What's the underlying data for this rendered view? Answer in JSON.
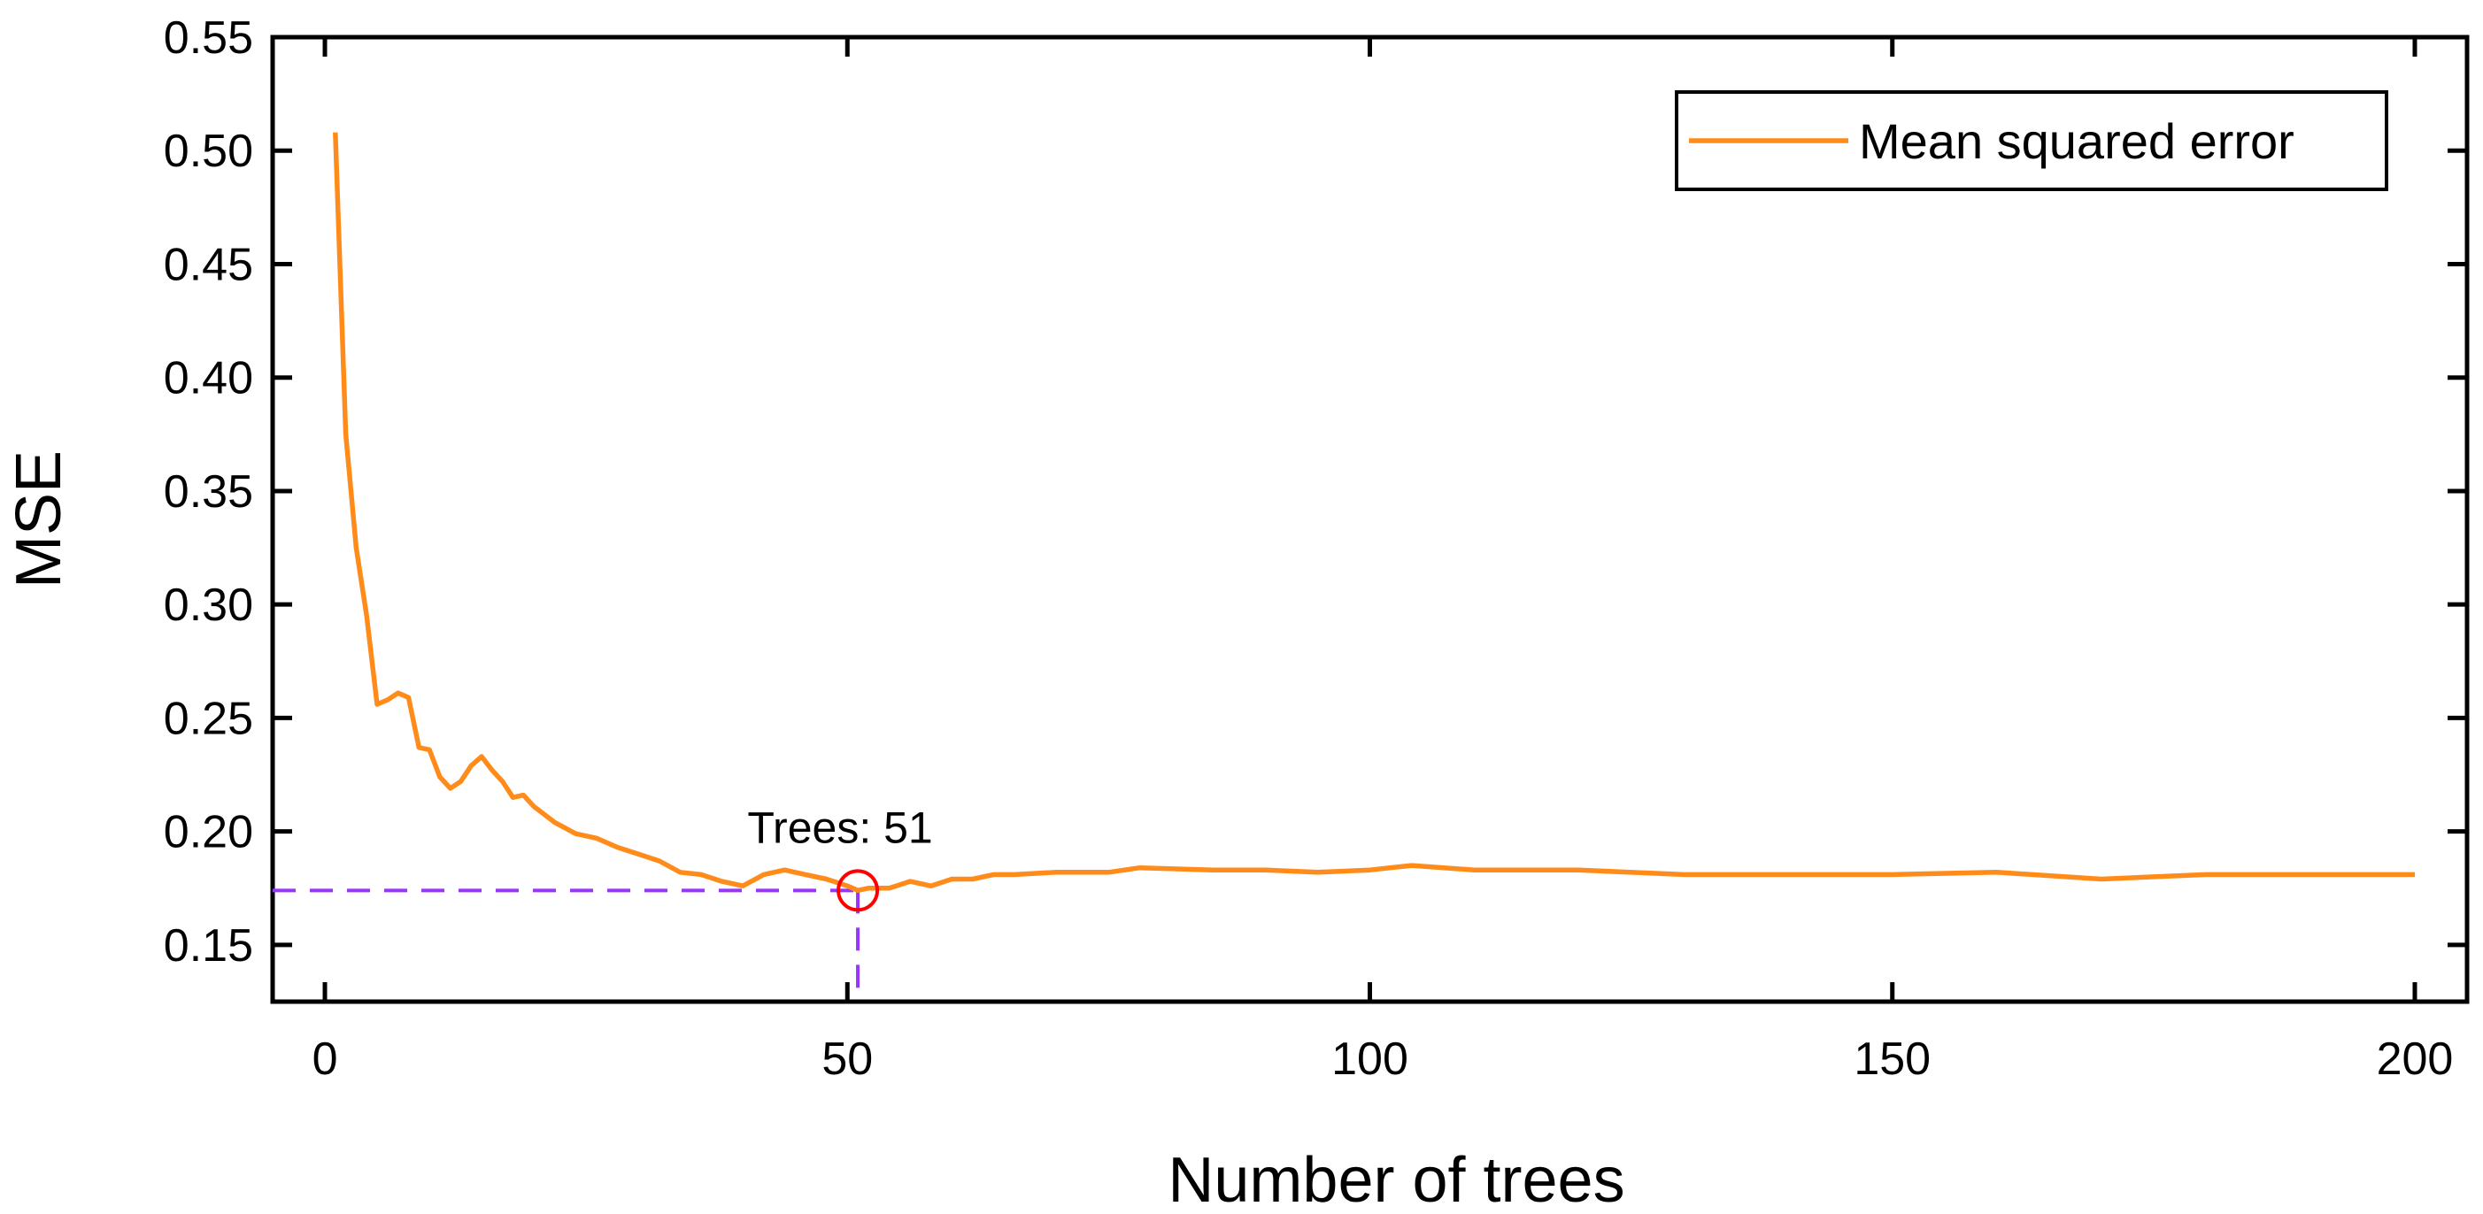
{
  "chart_data": {
    "type": "line",
    "title": "",
    "xlabel": "Number of trees",
    "ylabel": "MSE",
    "xlim": [
      -5,
      205
    ],
    "ylim": [
      0.125,
      0.55
    ],
    "x_ticks": [
      0,
      50,
      100,
      150,
      200
    ],
    "x_tick_labels": [
      "0",
      "50",
      "100",
      "150",
      "200"
    ],
    "y_ticks": [
      0.15,
      0.2,
      0.25,
      0.3,
      0.35,
      0.4,
      0.45,
      0.5,
      0.55
    ],
    "y_tick_labels": [
      "0.15",
      "0.20",
      "0.25",
      "0.30",
      "0.35",
      "0.40",
      "0.45",
      "0.50",
      "0.55"
    ],
    "grid": false,
    "legend": {
      "position": "top-right",
      "entries": [
        "Mean squared error"
      ]
    },
    "series": [
      {
        "name": "Mean squared error",
        "color": "#ff8c1a",
        "x": [
          1,
          2,
          3,
          4,
          5,
          6,
          7,
          8,
          9,
          10,
          11,
          12,
          13,
          14,
          15,
          16,
          17,
          18,
          19,
          20,
          22,
          24,
          26,
          28,
          30,
          32,
          34,
          36,
          38,
          40,
          42,
          44,
          46,
          48,
          50,
          51,
          52,
          54,
          56,
          58,
          60,
          62,
          64,
          66,
          70,
          75,
          78,
          85,
          90,
          95,
          100,
          104,
          110,
          120,
          130,
          140,
          150,
          160,
          170,
          180,
          190,
          200
        ],
        "values": [
          0.508,
          0.375,
          0.325,
          0.295,
          0.256,
          0.258,
          0.261,
          0.259,
          0.237,
          0.236,
          0.224,
          0.219,
          0.222,
          0.229,
          0.233,
          0.227,
          0.222,
          0.215,
          0.216,
          0.211,
          0.204,
          0.199,
          0.197,
          0.193,
          0.19,
          0.187,
          0.182,
          0.181,
          0.178,
          0.176,
          0.181,
          0.183,
          0.181,
          0.179,
          0.176,
          0.174,
          0.175,
          0.175,
          0.178,
          0.176,
          0.179,
          0.179,
          0.181,
          0.181,
          0.182,
          0.182,
          0.184,
          0.183,
          0.183,
          0.182,
          0.183,
          0.185,
          0.183,
          0.183,
          0.181,
          0.181,
          0.181,
          0.182,
          0.179,
          0.181,
          0.181,
          0.181
        ]
      }
    ],
    "annotations": [
      {
        "text": "Trees: 51",
        "x": 51,
        "y": 0.174,
        "marker": "circle",
        "marker_color": "#ff0000",
        "guide_color": "#9933ff"
      }
    ]
  }
}
